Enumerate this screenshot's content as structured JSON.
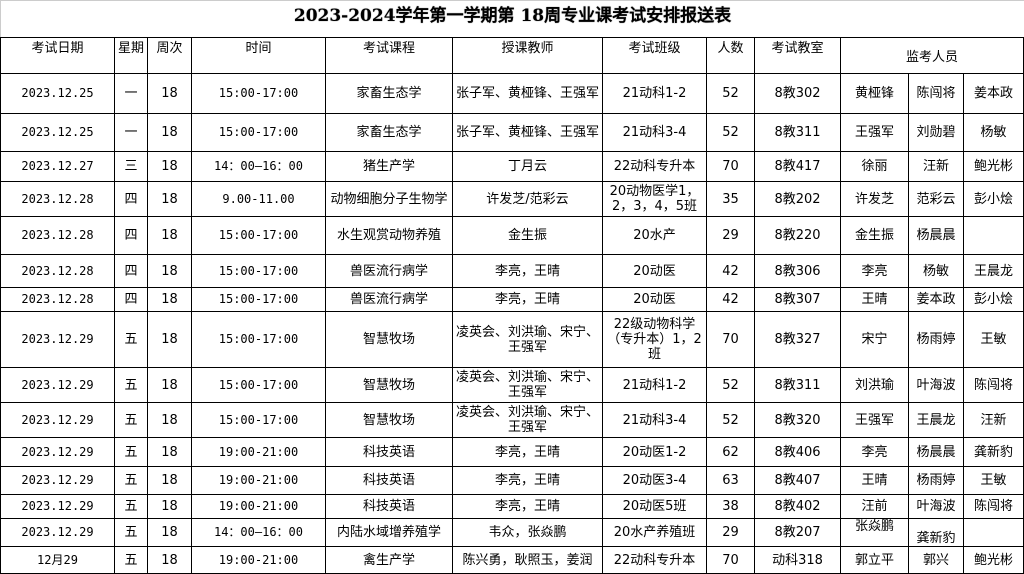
{
  "title": "2023-2024学年第一学期第 18周专业课考试安排报送表",
  "headers": [
    "考试日期",
    "星期",
    "周次",
    "时间",
    "考试课程",
    "授课教师",
    "考试班级",
    "人数",
    "考试教室",
    "监考人员"
  ],
  "rows": [
    [
      "2023.12.25",
      "一",
      "18",
      "15:00-17:00",
      "家畜生态学",
      "张子军、黄桠锋、王强军",
      "21动科1-2",
      "52",
      "8教302",
      "黄桠锋",
      "陈闯将",
      "姜本政"
    ],
    [
      "2023.12.25",
      "一",
      "18",
      "15:00-17:00",
      "家畜生态学",
      "张子军、黄桠锋、王强军",
      "21动科3-4",
      "52",
      "8教311",
      "王强军",
      "刘勋碧",
      "杨敏"
    ],
    [
      "2023.12.27",
      "三",
      "18",
      "14：00—16：00",
      "猪生产学",
      "丁月云",
      "22动科专升本",
      "70",
      "8教417",
      "徐丽",
      "汪新",
      "鲍光彬"
    ],
    [
      "2023.12.28",
      "四",
      "18",
      "9.00-11.00",
      "动物细胞分子生物学",
      "许发芝/范彩云",
      "20动物医学1，2，3，4，5班",
      "35",
      "8教202",
      "许发芝",
      "范彩云",
      "彭小烩"
    ],
    [
      "2023.12.28",
      "四",
      "18",
      "15:00-17:00",
      "水生观赏动物养殖",
      "金生振",
      "20水产",
      "29",
      "8教220",
      "金生振",
      "杨晨晨",
      ""
    ],
    [
      "2023.12.28",
      "四",
      "18",
      "15:00-17:00",
      "兽医流行病学",
      "李亮，王晴",
      "20动医",
      "42",
      "8教306",
      "李亮",
      "杨敏",
      "王晨龙"
    ],
    [
      "2023.12.28",
      "四",
      "18",
      "15:00-17:00",
      "兽医流行病学",
      "李亮，王晴",
      "20动医",
      "42",
      "8教307",
      "王晴",
      "姜本政",
      "彭小烩"
    ],
    [
      "2023.12.29",
      "五",
      "18",
      "15:00-17:00",
      "智慧牧场",
      "凌英会、刘洪瑜、宋宁、王强军",
      "22级动物科学（专升本）1，2班",
      "70",
      "8教327",
      "宋宁",
      "杨雨婷",
      "王敏"
    ],
    [
      "2023.12.29",
      "五",
      "18",
      "15:00-17:00",
      "智慧牧场",
      "凌英会、刘洪瑜、宋宁、王强军",
      "21动科1-2",
      "52",
      "8教311",
      "刘洪瑜",
      "叶海波",
      "陈闯将"
    ],
    [
      "2023.12.29",
      "五",
      "18",
      "15:00-17:00",
      "智慧牧场",
      "凌英会、刘洪瑜、宋宁、王强军",
      "21动科3-4",
      "52",
      "8教320",
      "王强军",
      "王晨龙",
      "汪新"
    ],
    [
      "2023.12.29",
      "五",
      "18",
      "19:00-21:00",
      "科技英语",
      "李亮，王晴",
      "20动医1-2",
      "62",
      "8教406",
      "李亮",
      "杨晨晨",
      "龚新豹"
    ],
    [
      "2023.12.29",
      "五",
      "18",
      "19:00-21:00",
      "科技英语",
      "李亮，王晴",
      "20动医3-4",
      "63",
      "8教407",
      "王晴",
      "杨雨婷",
      "王敏"
    ],
    [
      "2023.12.29",
      "五",
      "18",
      "19:00-21:00",
      "科技英语",
      "李亮，王晴",
      "20动医5班",
      "38",
      "8教402",
      "汪前",
      "叶海波",
      "陈闯将"
    ],
    [
      "2023.12.29",
      "五",
      "18",
      "14：00—16：00",
      "内陆水域增养殖学",
      "韦众，张焱鹏",
      "20水产养殖班",
      "29",
      "8教207",
      "张焱鹏",
      "龚新豹",
      ""
    ],
    [
      "12月29",
      "五",
      "18",
      "19:00-21:00",
      "禽生产学",
      "陈兴勇，耿照玉，姜润",
      "22动科专升本",
      "70",
      "动科318",
      "郭立平",
      "郭兴",
      "鲍光彬"
    ]
  ]
}
